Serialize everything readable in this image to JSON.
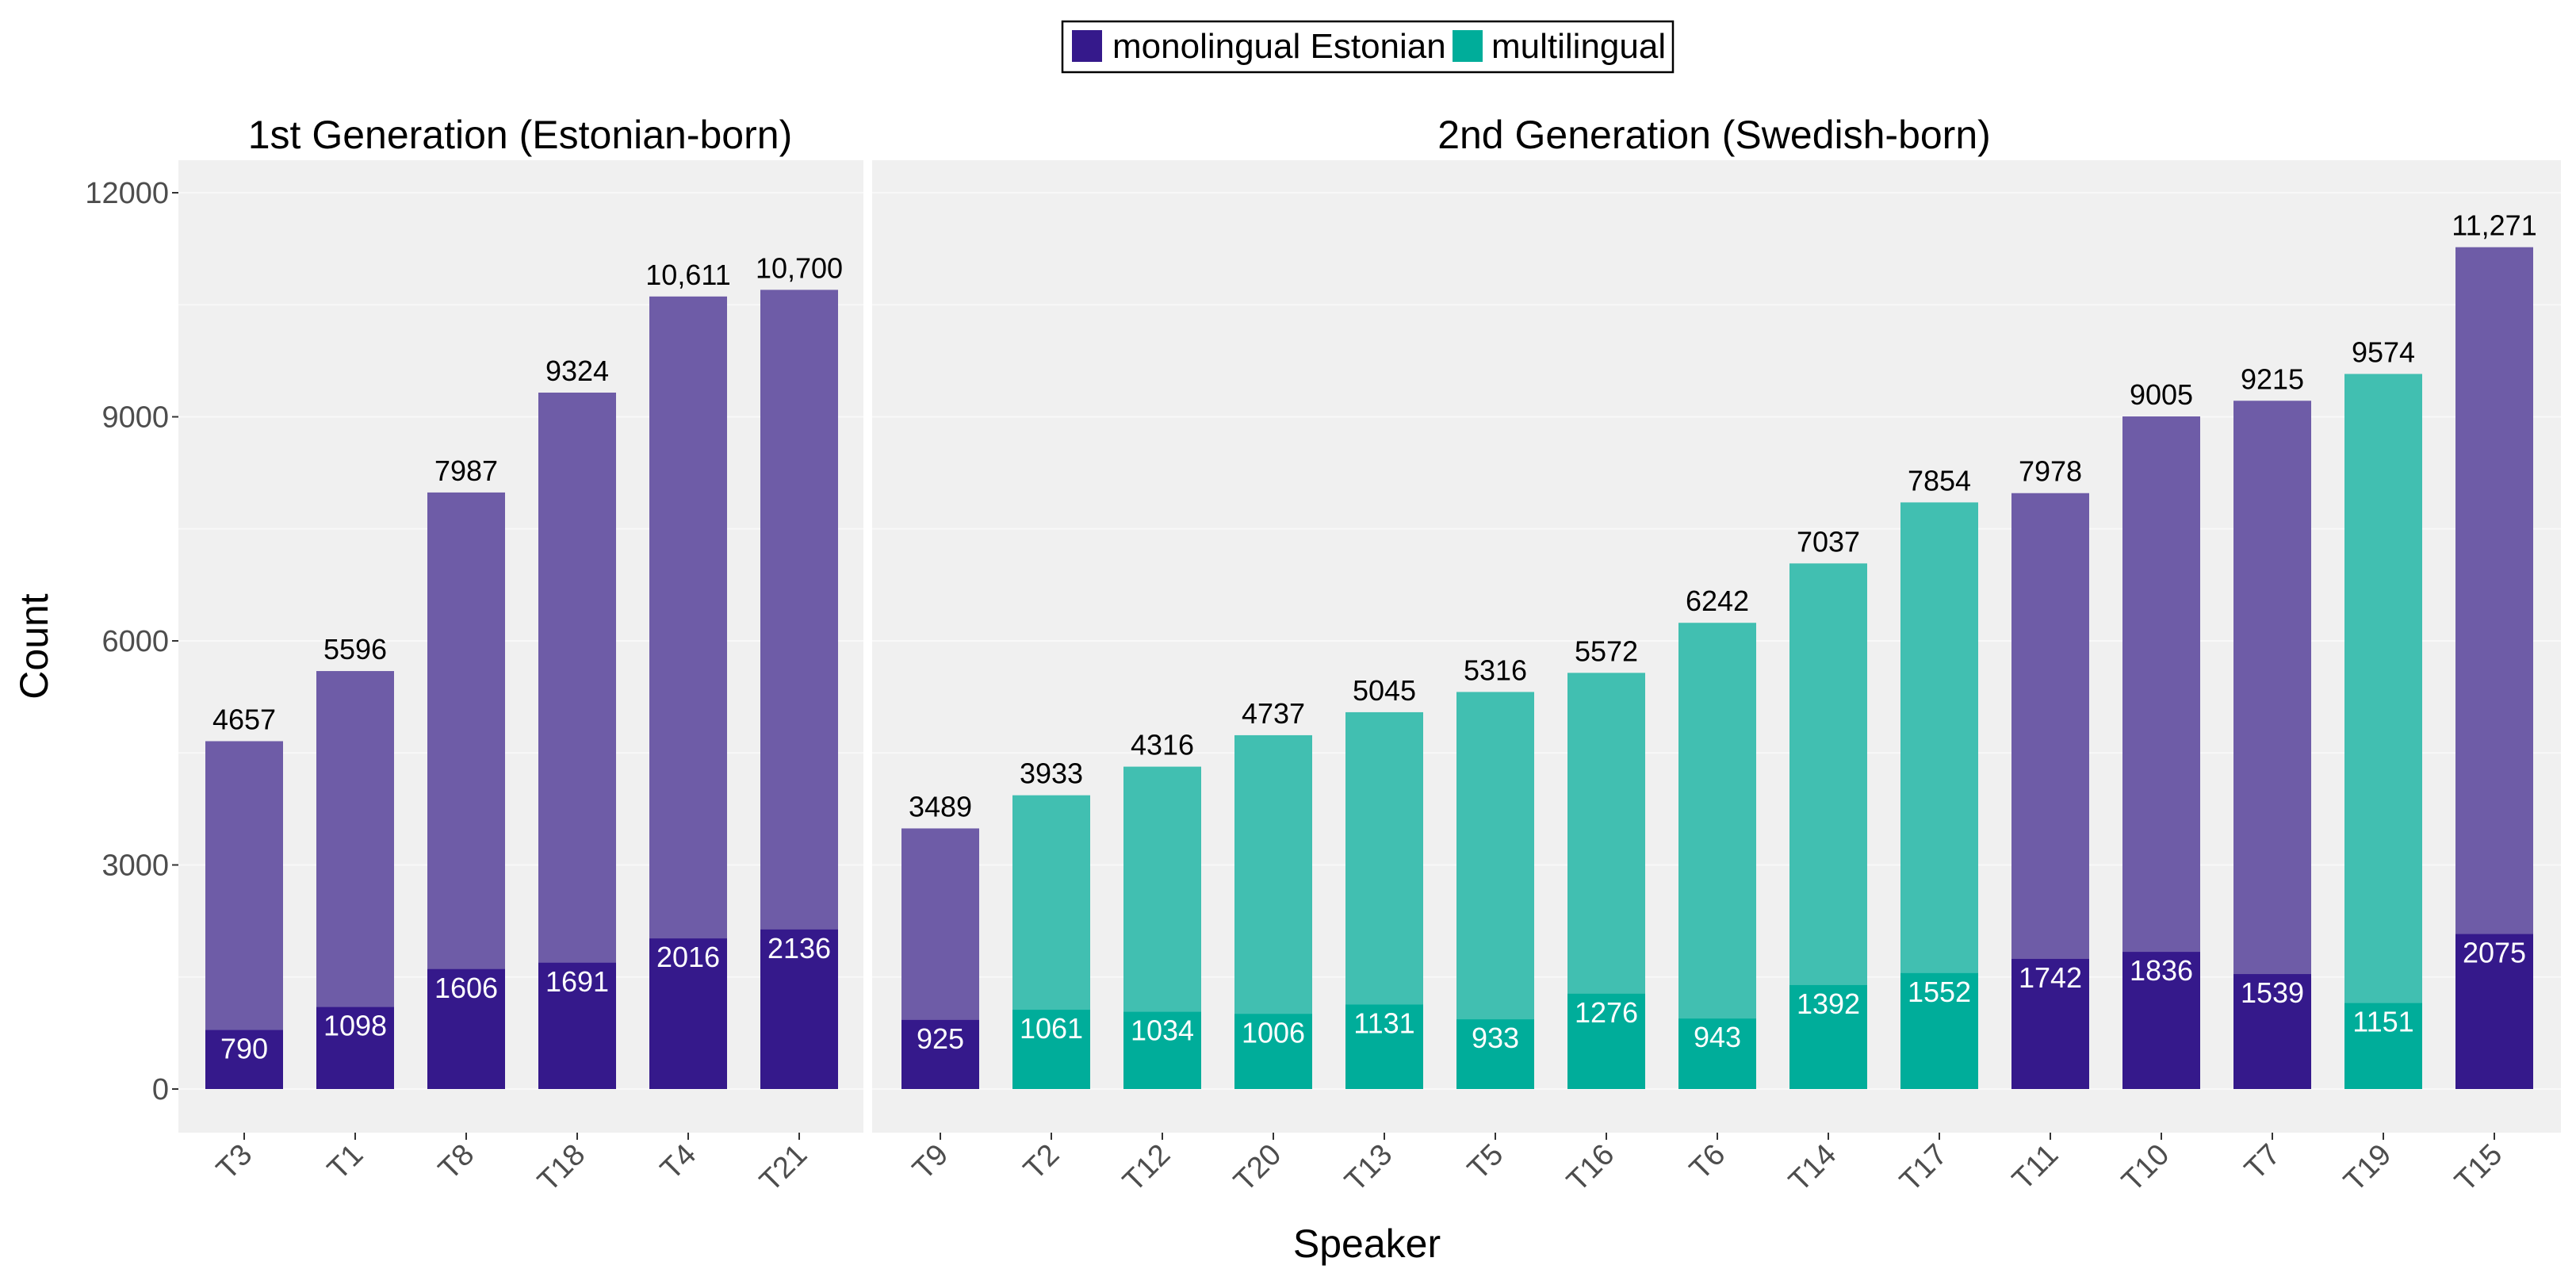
{
  "chart_data": {
    "type": "bar",
    "stacked": "overlay",
    "ylabel": "Count",
    "xlabel": "Speaker",
    "ylim": [
      0,
      12000
    ],
    "yticks": [
      0,
      3000,
      6000,
      9000,
      12000
    ],
    "ytick_labels": [
      "0",
      "3000",
      "6000",
      "9000",
      "12000"
    ],
    "legend": {
      "position": "top",
      "entries": [
        {
          "name": "monolingual Estonian",
          "color": "#35198b"
        },
        {
          "name": "multilingual",
          "color": "#00ad9a"
        }
      ]
    },
    "colors": {
      "monolingual Estonian": {
        "dark": "#35198b",
        "light": "#6e5ca7"
      },
      "multilingual": {
        "dark": "#00ad9a",
        "light": "#41bfb1"
      }
    },
    "panels": [
      {
        "title": "1st Generation (Estonian-born)",
        "bars": [
          {
            "speaker": "T3",
            "group": "monolingual Estonian",
            "total": 4657,
            "total_label": "4657",
            "inner": 790,
            "inner_label": "790"
          },
          {
            "speaker": "T1",
            "group": "monolingual Estonian",
            "total": 5596,
            "total_label": "5596",
            "inner": 1098,
            "inner_label": "1098"
          },
          {
            "speaker": "T8",
            "group": "monolingual Estonian",
            "total": 7987,
            "total_label": "7987",
            "inner": 1606,
            "inner_label": "1606"
          },
          {
            "speaker": "T18",
            "group": "monolingual Estonian",
            "total": 9324,
            "total_label": "9324",
            "inner": 1691,
            "inner_label": "1691"
          },
          {
            "speaker": "T4",
            "group": "monolingual Estonian",
            "total": 10611,
            "total_label": "10,611",
            "inner": 2016,
            "inner_label": "2016"
          },
          {
            "speaker": "T21",
            "group": "monolingual Estonian",
            "total": 10700,
            "total_label": "10,700",
            "inner": 2136,
            "inner_label": "2136"
          }
        ]
      },
      {
        "title": "2nd Generation (Swedish-born)",
        "bars": [
          {
            "speaker": "T9",
            "group": "monolingual Estonian",
            "total": 3489,
            "total_label": "3489",
            "inner": 925,
            "inner_label": "925"
          },
          {
            "speaker": "T2",
            "group": "multilingual",
            "total": 3933,
            "total_label": "3933",
            "inner": 1061,
            "inner_label": "1061"
          },
          {
            "speaker": "T12",
            "group": "multilingual",
            "total": 4316,
            "total_label": "4316",
            "inner": 1034,
            "inner_label": "1034"
          },
          {
            "speaker": "T20",
            "group": "multilingual",
            "total": 4737,
            "total_label": "4737",
            "inner": 1006,
            "inner_label": "1006"
          },
          {
            "speaker": "T13",
            "group": "multilingual",
            "total": 5045,
            "total_label": "5045",
            "inner": 1131,
            "inner_label": "1131"
          },
          {
            "speaker": "T5",
            "group": "multilingual",
            "total": 5316,
            "total_label": "5316",
            "inner": 933,
            "inner_label": "933"
          },
          {
            "speaker": "T16",
            "group": "multilingual",
            "total": 5572,
            "total_label": "5572",
            "inner": 1276,
            "inner_label": "1276"
          },
          {
            "speaker": "T6",
            "group": "multilingual",
            "total": 6242,
            "total_label": "6242",
            "inner": 943,
            "inner_label": "943"
          },
          {
            "speaker": "T14",
            "group": "multilingual",
            "total": 7037,
            "total_label": "7037",
            "inner": 1392,
            "inner_label": "1392"
          },
          {
            "speaker": "T17",
            "group": "multilingual",
            "total": 7854,
            "total_label": "7854",
            "inner": 1552,
            "inner_label": "1552"
          },
          {
            "speaker": "T11",
            "group": "monolingual Estonian",
            "total": 7978,
            "total_label": "7978",
            "inner": 1742,
            "inner_label": "1742"
          },
          {
            "speaker": "T10",
            "group": "monolingual Estonian",
            "total": 9005,
            "total_label": "9005",
            "inner": 1836,
            "inner_label": "1836"
          },
          {
            "speaker": "T7",
            "group": "monolingual Estonian",
            "total": 9215,
            "total_label": "9215",
            "inner": 1539,
            "inner_label": "1539"
          },
          {
            "speaker": "T19",
            "group": "multilingual",
            "total": 9574,
            "total_label": "9574",
            "inner": 1151,
            "inner_label": "1151"
          },
          {
            "speaker": "T15",
            "group": "monolingual Estonian",
            "total": 11271,
            "total_label": "11,271",
            "inner": 2075,
            "inner_label": "2075"
          }
        ]
      }
    ]
  }
}
